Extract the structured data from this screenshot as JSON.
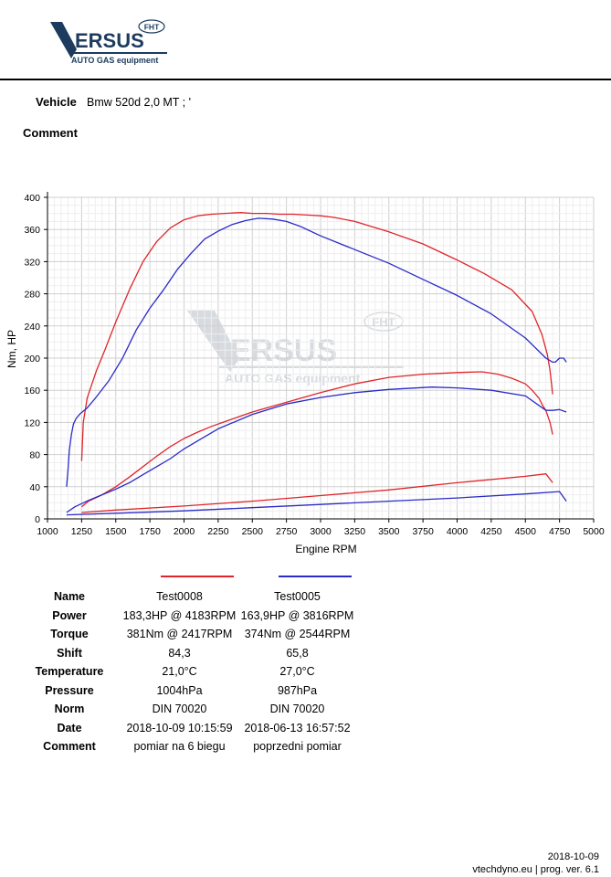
{
  "header": {
    "logo_text": "ERSUS",
    "logo_badge": "FHT",
    "logo_tagline": "AUTO GAS equipment",
    "vehicle_label": "Vehicle",
    "vehicle_value": "Bmw 520d 2,0 MT ; '",
    "comment_label": "Comment"
  },
  "colors": {
    "red": "#e0242a",
    "blue": "#2a2ac8",
    "grid": "#dcdcdc"
  },
  "chart_data": {
    "type": "line",
    "xlabel": "Engine RPM",
    "ylabel": "Nm, HP",
    "xlim": [
      1000,
      5000
    ],
    "ylim": [
      0,
      400
    ],
    "xticks": [
      1000,
      1250,
      1500,
      1750,
      2000,
      2250,
      2500,
      2750,
      3000,
      3250,
      3500,
      3750,
      4000,
      4250,
      4500,
      4750,
      5000
    ],
    "yticks": [
      0,
      40,
      80,
      120,
      160,
      200,
      240,
      280,
      320,
      360,
      400
    ],
    "grid": true,
    "watermark": {
      "text": "ERSUS",
      "badge": "FHT",
      "tagline": "AUTO GAS equipment"
    },
    "series": [
      {
        "name": "Test0008",
        "kind": "torque",
        "color": "#e0242a",
        "x": [
          1250,
          1262,
          1290,
          1320,
          1360,
          1420,
          1500,
          1600,
          1700,
          1800,
          1900,
          2000,
          2100,
          2200,
          2300,
          2417,
          2500,
          2600,
          2700,
          2800,
          2900,
          3000,
          3100,
          3250,
          3500,
          3750,
          4000,
          4200,
          4400,
          4550,
          4620,
          4660,
          4680,
          4700
        ],
        "y": [
          72,
          120,
          150,
          165,
          185,
          210,
          245,
          285,
          320,
          345,
          362,
          372,
          377,
          379,
          380,
          381,
          380,
          380,
          379,
          379,
          378,
          377,
          375,
          370,
          357,
          342,
          322,
          305,
          285,
          258,
          230,
          205,
          185,
          155
        ]
      },
      {
        "name": "Test0005",
        "kind": "torque",
        "color": "#2a2ac8",
        "x": [
          1140,
          1150,
          1160,
          1175,
          1190,
          1210,
          1240,
          1290,
          1350,
          1450,
          1550,
          1650,
          1750,
          1850,
          1950,
          2050,
          2150,
          2250,
          2350,
          2450,
          2544,
          2650,
          2750,
          2850,
          3000,
          3250,
          3500,
          3750,
          4000,
          4250,
          4500,
          4650,
          4700,
          4720,
          4750,
          4780,
          4800
        ],
        "y": [
          40,
          60,
          85,
          105,
          118,
          125,
          131,
          138,
          150,
          172,
          200,
          235,
          262,
          285,
          310,
          330,
          348,
          358,
          366,
          371,
          374,
          373,
          370,
          364,
          352,
          335,
          318,
          298,
          278,
          255,
          225,
          200,
          195,
          195,
          200,
          200,
          195
        ]
      },
      {
        "name": "Test0008",
        "kind": "power",
        "color": "#e0242a",
        "x": [
          1250,
          1300,
          1400,
          1500,
          1600,
          1700,
          1800,
          1900,
          2000,
          2100,
          2200,
          2300,
          2417,
          2500,
          2750,
          3000,
          3250,
          3500,
          3750,
          4000,
          4183,
          4300,
          4400,
          4500,
          4550,
          4600,
          4630,
          4650,
          4680,
          4700
        ],
        "y": [
          15,
          22,
          30,
          40,
          52,
          65,
          78,
          90,
          100,
          108,
          115,
          121,
          128,
          133,
          145,
          157,
          168,
          176,
          180,
          182,
          183,
          180,
          175,
          168,
          160,
          150,
          140,
          135,
          120,
          105
        ]
      },
      {
        "name": "Test0005",
        "kind": "power",
        "color": "#2a2ac8",
        "x": [
          1140,
          1200,
          1300,
          1400,
          1500,
          1600,
          1700,
          1800,
          1900,
          2000,
          2100,
          2250,
          2500,
          2750,
          3000,
          3250,
          3500,
          3816,
          4000,
          4250,
          4500,
          4650,
          4700,
          4750,
          4800
        ],
        "y": [
          8,
          15,
          23,
          30,
          37,
          45,
          55,
          65,
          75,
          87,
          97,
          112,
          130,
          143,
          151,
          157,
          161,
          164,
          163,
          160,
          153,
          135,
          135,
          136,
          133
        ]
      },
      {
        "name": "Test0008",
        "kind": "loss",
        "color": "#e0242a",
        "x": [
          1250,
          1500,
          2000,
          2500,
          3000,
          3500,
          4000,
          4500,
          4650,
          4700
        ],
        "y": [
          8,
          11,
          16,
          22,
          29,
          36,
          45,
          53,
          56,
          45
        ]
      },
      {
        "name": "Test0005",
        "kind": "loss",
        "color": "#2a2ac8",
        "x": [
          1140,
          1500,
          2000,
          2500,
          3000,
          3500,
          4000,
          4500,
          4750,
          4800
        ],
        "y": [
          5,
          7,
          10,
          14,
          18,
          22,
          26,
          31,
          34,
          22
        ]
      }
    ]
  },
  "table": {
    "headers": {
      "label": "Name",
      "a": "Test0008",
      "b": "Test0005"
    },
    "rows": [
      {
        "label": "Power",
        "a": "183,3HP @  4183RPM",
        "b": "163,9HP @  3816RPM"
      },
      {
        "label": "Torque",
        "a": "381Nm @ 2417RPM",
        "b": "374Nm @ 2544RPM"
      },
      {
        "label": "Shift",
        "a": "84,3",
        "b": "65,8"
      },
      {
        "label": "Temperature",
        "a": "21,0°C",
        "b": "27,0°C"
      },
      {
        "label": "Pressure",
        "a": "1004hPa",
        "b": "987hPa"
      },
      {
        "label": "Norm",
        "a": "DIN 70020",
        "b": "DIN 70020"
      },
      {
        "label": "Date",
        "a": "2018-10-09 10:15:59",
        "b": "2018-06-13 16:57:52"
      },
      {
        "label": "Comment",
        "a": "pomiar na 6 biegu",
        "b": "poprzedni pomiar"
      }
    ]
  },
  "footer": {
    "date": "2018-10-09",
    "credit": "vtechdyno.eu | prog. ver. 6.1"
  }
}
